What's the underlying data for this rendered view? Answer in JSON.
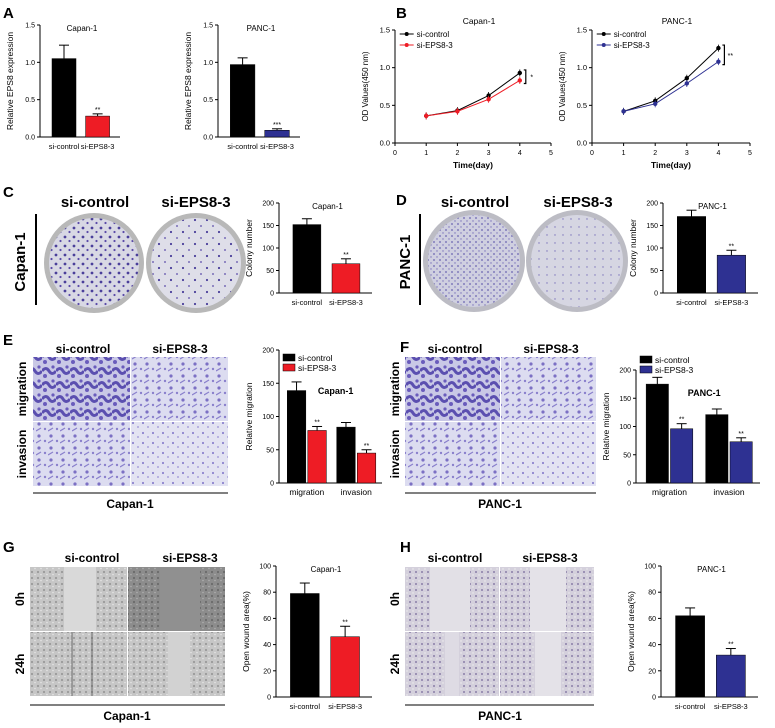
{
  "panels": {
    "A": "A",
    "B": "B",
    "C": "C",
    "D": "D",
    "E": "E",
    "F": "F",
    "G": "G",
    "H": "H"
  },
  "groups": {
    "control": "si-control",
    "knockdown": "si-EPS8-3"
  },
  "colors": {
    "control": "#000000",
    "capan_knockdown": "#ee1c25",
    "panc_knockdown": "#2e3192"
  },
  "row_labels": {
    "capan": "Capan-1",
    "panc": "PANC-1",
    "migration": "migration",
    "invasion": "invasion",
    "h0": "0h",
    "h24": "24h"
  },
  "chart_data": [
    {
      "id": "A1",
      "type": "bar",
      "title": "Capan-1",
      "ylabel": "Relative EPS8 expression",
      "ylim": [
        0,
        1.5
      ],
      "yticks": [
        "0.0",
        "0.5",
        "1.0",
        "1.5"
      ],
      "categories": [
        "si-control",
        "si-EPS8-3"
      ],
      "values": [
        1.05,
        0.28
      ],
      "errors": [
        0.18,
        0.03
      ],
      "sig": [
        "",
        "**"
      ]
    },
    {
      "id": "A2",
      "type": "bar",
      "title": "PANC-1",
      "ylabel": "Relative EPS8 expression",
      "ylim": [
        0,
        1.5
      ],
      "yticks": [
        "0.0",
        "0.5",
        "1.0",
        "1.5"
      ],
      "categories": [
        "si-control",
        "si-EPS8-3"
      ],
      "values": [
        0.97,
        0.09
      ],
      "errors": [
        0.09,
        0.02
      ],
      "sig": [
        "",
        "***"
      ]
    },
    {
      "id": "B1",
      "type": "line",
      "title": "Capan-1",
      "xlabel": "Time(day)",
      "ylabel": "OD Values(450 nm)",
      "xlim": [
        0,
        5
      ],
      "ylim": [
        0.0,
        1.5
      ],
      "xticks": [
        "0",
        "1",
        "2",
        "3",
        "4",
        "5"
      ],
      "yticks": [
        "0.0",
        "0.5",
        "1.0",
        "1.5"
      ],
      "x": [
        1,
        2,
        3,
        4
      ],
      "series": [
        {
          "name": "si-control",
          "values": [
            0.36,
            0.43,
            0.63,
            0.93
          ]
        },
        {
          "name": "si-EPS8-3",
          "values": [
            0.36,
            0.42,
            0.58,
            0.83
          ]
        }
      ],
      "sig": "*"
    },
    {
      "id": "B2",
      "type": "line",
      "title": "PANC-1",
      "xlabel": "Time(day)",
      "ylabel": "OD Values(450 nm)",
      "xlim": [
        0,
        5
      ],
      "ylim": [
        0.0,
        1.5
      ],
      "xticks": [
        "0",
        "1",
        "2",
        "3",
        "4",
        "5"
      ],
      "yticks": [
        "0.0",
        "0.5",
        "1.0",
        "1.5"
      ],
      "x": [
        1,
        2,
        3,
        4
      ],
      "series": [
        {
          "name": "si-control",
          "values": [
            0.42,
            0.56,
            0.86,
            1.26
          ]
        },
        {
          "name": "si-EPS8-3",
          "values": [
            0.42,
            0.52,
            0.79,
            1.08
          ]
        }
      ],
      "sig": "**"
    },
    {
      "id": "C",
      "type": "bar",
      "title": "Capan-1",
      "ylabel": "Colony number",
      "ylim": [
        0,
        200
      ],
      "yticks": [
        "0",
        "50",
        "100",
        "150",
        "200"
      ],
      "categories": [
        "si-control",
        "si-EPS8-3"
      ],
      "values": [
        152,
        65
      ],
      "errors": [
        13,
        11
      ],
      "sig": [
        "",
        "**"
      ]
    },
    {
      "id": "D",
      "type": "bar",
      "title": "PANC-1",
      "ylabel": "Colony number",
      "ylim": [
        0,
        200
      ],
      "yticks": [
        "0",
        "50",
        "100",
        "150",
        "200"
      ],
      "categories": [
        "si-control",
        "si-EPS8-3"
      ],
      "values": [
        170,
        84
      ],
      "errors": [
        14,
        11
      ],
      "sig": [
        "",
        "**"
      ]
    },
    {
      "id": "E",
      "type": "bar",
      "title": "Capan-1",
      "ylabel": "Relative migration",
      "ylim": [
        0,
        200
      ],
      "yticks": [
        "0",
        "50",
        "100",
        "150",
        "200"
      ],
      "categories": [
        "migration",
        "invasion"
      ],
      "series": [
        {
          "name": "si-control",
          "values": [
            139,
            84
          ],
          "errors": [
            13,
            7
          ]
        },
        {
          "name": "si-EPS8-3",
          "values": [
            79,
            45
          ],
          "errors": [
            6,
            5
          ]
        }
      ],
      "sig": [
        "**",
        "**"
      ]
    },
    {
      "id": "F",
      "type": "bar",
      "title": "PANC-1",
      "ylabel": "Relative migration",
      "ylim": [
        0,
        200
      ],
      "yticks": [
        "0",
        "50",
        "100",
        "150",
        "200"
      ],
      "categories": [
        "migration",
        "invasion"
      ],
      "series": [
        {
          "name": "si-control",
          "values": [
            175,
            121
          ],
          "errors": [
            12,
            10
          ]
        },
        {
          "name": "si-EPS8-3",
          "values": [
            96,
            73
          ],
          "errors": [
            9,
            7
          ]
        }
      ],
      "sig": [
        "**",
        "**"
      ]
    },
    {
      "id": "G",
      "type": "bar",
      "title": "Capan-1",
      "ylabel": "Open wound area(%)",
      "ylim": [
        0,
        100
      ],
      "yticks": [
        "0",
        "20",
        "40",
        "60",
        "80",
        "100"
      ],
      "categories": [
        "si-control",
        "si-EPS8-3"
      ],
      "values": [
        79,
        46
      ],
      "errors": [
        8,
        8
      ],
      "sig": [
        "",
        "**"
      ]
    },
    {
      "id": "H",
      "type": "bar",
      "title": "PANC-1",
      "ylabel": "Open wound area(%)",
      "ylim": [
        0,
        100
      ],
      "yticks": [
        "0",
        "20",
        "40",
        "60",
        "80",
        "100"
      ],
      "categories": [
        "si-control",
        "si-EPS8-3"
      ],
      "values": [
        62,
        32
      ],
      "errors": [
        6,
        5
      ],
      "sig": [
        "",
        "**"
      ]
    }
  ]
}
